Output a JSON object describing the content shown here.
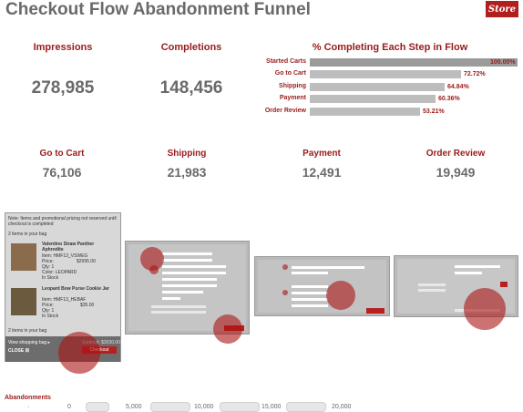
{
  "header": {
    "title": "Checkout Flow Abandonment Funnel",
    "store_badge": "Store"
  },
  "kpis_top": [
    {
      "label": "Impressions",
      "value": "278,985"
    },
    {
      "label": "Completions",
      "value": "148,456"
    }
  ],
  "funnel": {
    "title": "% Completing Each Step in Flow",
    "steps": [
      {
        "label": "Started Carts",
        "pct": 100.0,
        "text": "100.00%"
      },
      {
        "label": "Go to Cart",
        "pct": 72.72,
        "text": "72.72%"
      },
      {
        "label": "Shipping",
        "pct": 64.84,
        "text": "64.84%"
      },
      {
        "label": "Payment",
        "pct": 60.36,
        "text": "60.36%"
      },
      {
        "label": "Order Review",
        "pct": 53.21,
        "text": "53.21%"
      }
    ]
  },
  "kpis_steps": [
    {
      "label": "Go to Cart",
      "value": "76,106"
    },
    {
      "label": "Shipping",
      "value": "21,983"
    },
    {
      "label": "Payment",
      "value": "12,491"
    },
    {
      "label": "Order Review",
      "value": "19,949"
    }
  ],
  "cart_panel": {
    "note": "Note: Items and promotional pricing not reserved until checkout is completed",
    "count_top": "2 items in your bag",
    "items": [
      {
        "name": "Valentino Straw Panther Aphrodite",
        "item": "Item: HMF13_VSWEG",
        "price_label": "Price:",
        "price": "$2995.00",
        "qty": "Qty: 1",
        "color": "Color: LEOPARD",
        "stock": "In Stock"
      },
      {
        "name": "Leopard Bow Purse Cookie Jar",
        "item": "Item: HMF13_HEBAF",
        "price_label": "Price:",
        "price": "$35.00",
        "qty": "Qty: 1",
        "color": "",
        "stock": "In Stock"
      }
    ],
    "count_bottom": "2 items in your bag",
    "view_bag": "View shopping bag ▸",
    "subtotal": "Subtotal: $3030.00",
    "close": "CLOSE ☒",
    "checkout": "Checkout"
  },
  "abandonments": {
    "label": "Abandonments",
    "ticks": [
      "0",
      "5,000",
      "10,000",
      "15,000",
      "20,000"
    ]
  }
}
